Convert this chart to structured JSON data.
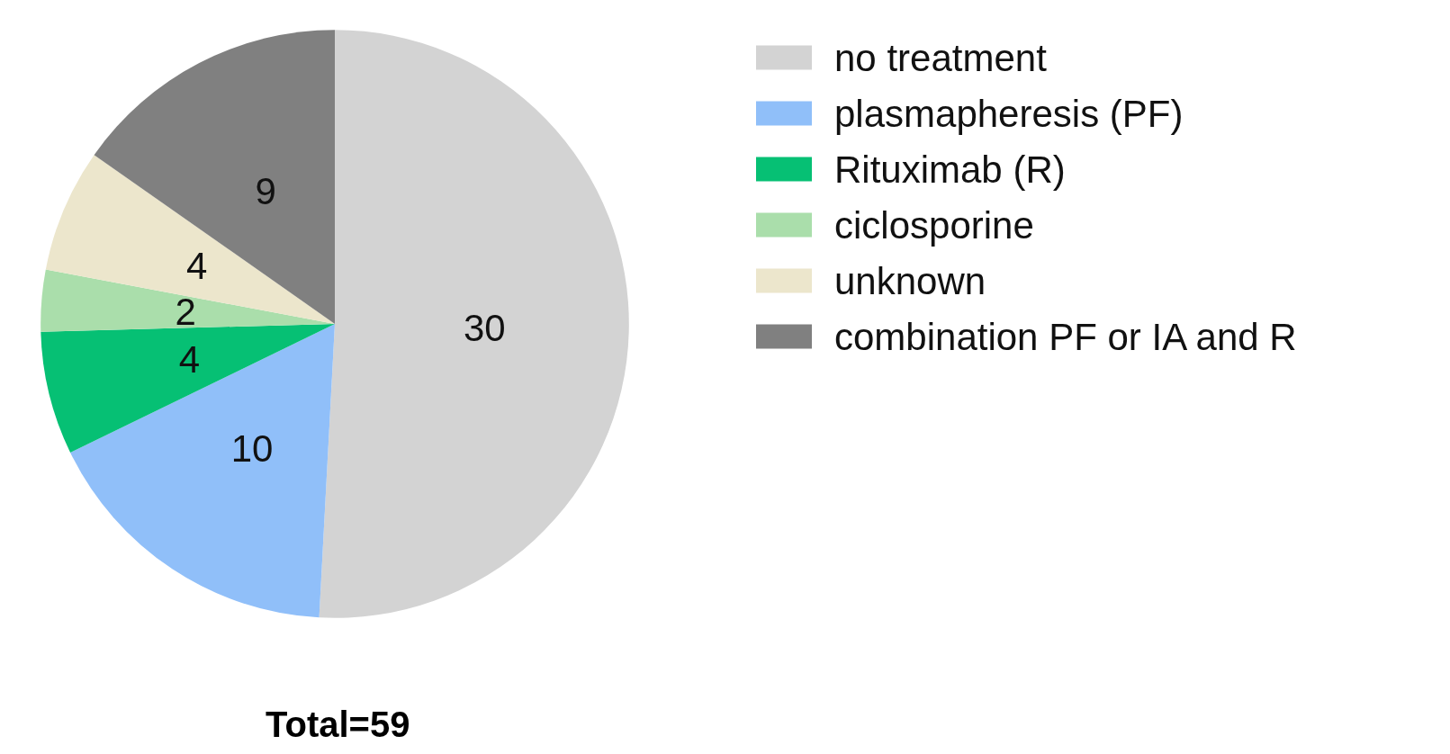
{
  "chart_data": {
    "type": "pie",
    "categories": [
      "no treatment",
      "plasmapheresis (PF)",
      "Rituximab (R)",
      "ciclosporine",
      "unknown",
      "combination PF or IA and R"
    ],
    "values": [
      30,
      10,
      4,
      2,
      4,
      9
    ],
    "colors": [
      "#d3d3d3",
      "#90bff9",
      "#06c074",
      "#aadeab",
      "#ece6cc",
      "#808080"
    ],
    "data_labels": true,
    "legend": "top right",
    "annotations": [
      "Total=59"
    ]
  }
}
